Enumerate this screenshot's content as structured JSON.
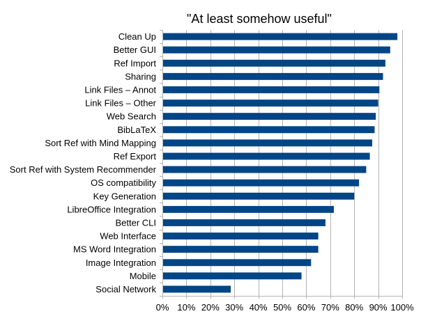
{
  "chart_data": {
    "type": "bar",
    "orientation": "horizontal",
    "title": "\"At least somehow useful\"",
    "xlabel": "",
    "ylabel": "",
    "categories": [
      "Clean Up",
      "Better GUI",
      "Ref Import",
      "Sharing",
      "Link Files – Annot",
      "Link Files – Other",
      "Web Search",
      "BibLaTeX",
      "Sort Ref with Mind Mapping",
      "Ref Export",
      "Sort Ref with System Recommender",
      "OS compatibility",
      "Key Generation",
      "LibreOffice Integration",
      "Better CLI",
      "Web Interface",
      "MS Word Integration",
      "Image Integration",
      "Mobile",
      "Social Network"
    ],
    "values": [
      98,
      95,
      93,
      92,
      90.5,
      90,
      89,
      88.5,
      87.5,
      86.5,
      85,
      82,
      80,
      71.5,
      68,
      65,
      65,
      62,
      58,
      28.5
    ],
    "xlim": [
      0,
      100
    ],
    "x_ticks": [
      "0%",
      "10%",
      "20%",
      "30%",
      "40%",
      "50%",
      "60%",
      "70%",
      "80%",
      "90%",
      "100%"
    ],
    "x_tick_values": [
      0,
      10,
      20,
      30,
      40,
      50,
      60,
      70,
      80,
      90,
      100
    ],
    "bar_color": "#004586",
    "grid_color": "#b3b3b3",
    "grid": true,
    "legend": "none"
  }
}
